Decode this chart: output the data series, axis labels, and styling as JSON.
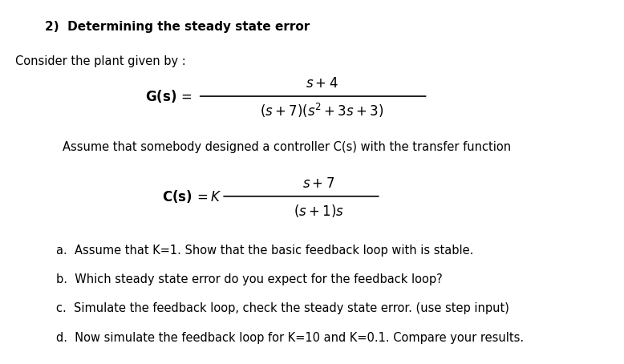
{
  "background_color": "#ffffff",
  "title_bold": "2)  Determining the steady state error",
  "intro_text": "Consider the plant given by :",
  "Gs_label": "$\\mathbf{G(s)}$",
  "Gs_equals": "$=$",
  "Gs_numerator": "$s + 4$",
  "Gs_denominator": "$(s + 7)(s^2 + 3s + 3)$",
  "assume_text": "Assume that somebody designed a controller C(s) with the transfer function",
  "Cs_label": "$\\mathbf{C(s)} = K$",
  "Cs_numerator": "$s + 7$",
  "Cs_denominator": "$(s + 1)s$",
  "items": [
    "a.  Assume that K=1. Show that the basic feedback loop with is stable.",
    "b.  Which steady state error do you expect for the feedback loop?",
    "c.  Simulate the feedback loop, check the steady state error. (use step input)",
    "d.  Now simulate the feedback loop for K=10 and K=0.1. Compare your results."
  ],
  "figsize": [
    7.78,
    4.54
  ],
  "dpi": 100
}
